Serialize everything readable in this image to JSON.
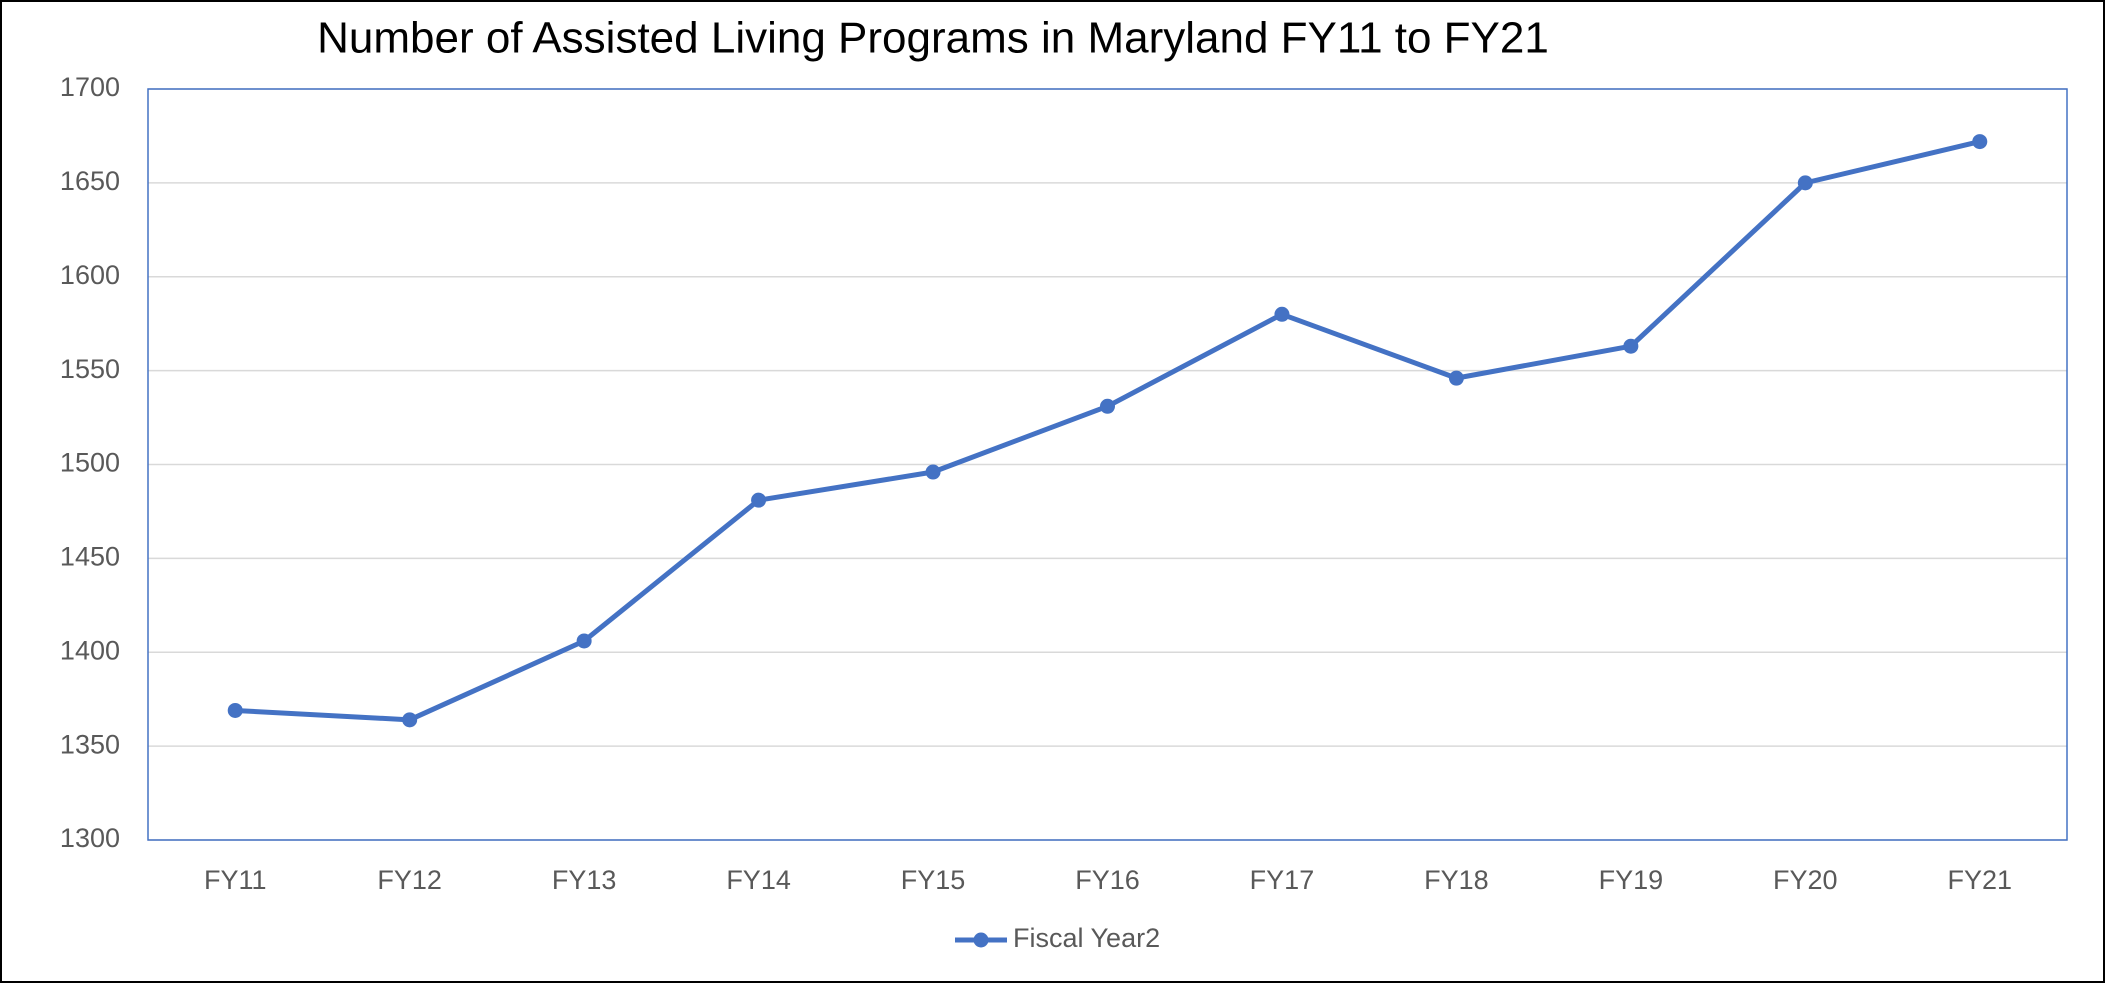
{
  "chart_data": {
    "type": "line",
    "title": "Number of Assisted Living Programs in Maryland FY11 to FY21",
    "categories": [
      "FY11",
      "FY12",
      "FY13",
      "FY14",
      "FY15",
      "FY16",
      "FY17",
      "FY18",
      "FY19",
      "FY20",
      "FY21"
    ],
    "series": [
      {
        "name": "Fiscal Year2",
        "color": "#4472c4",
        "values": [
          1369,
          1364,
          1406,
          1481,
          1496,
          1531,
          1580,
          1546,
          1563,
          1650,
          1672
        ]
      }
    ],
    "ylim": [
      1300,
      1700
    ],
    "yticks": [
      1300,
      1350,
      1400,
      1450,
      1500,
      1550,
      1600,
      1650,
      1700
    ],
    "grid": true,
    "legend": "bottom"
  }
}
